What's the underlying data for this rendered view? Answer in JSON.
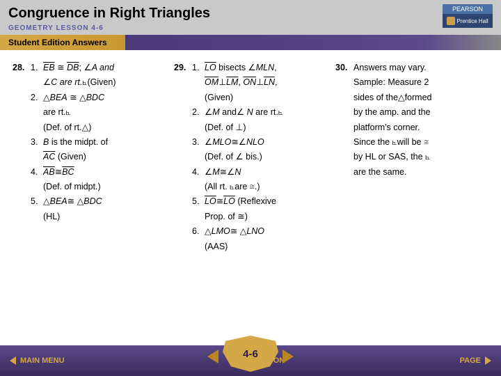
{
  "header": {
    "title": "Congruence in Right Triangles",
    "subtitle": "GEOMETRY  LESSON 4-6"
  },
  "pearson": {
    "top": "PEARSON",
    "bot": "Prentice Hall"
  },
  "banner": "Student Edition Answers",
  "q28": {
    "num": "28.",
    "s1n": "1.",
    "s1a": "EB",
    "s1b": "DB",
    "s1c": "; ",
    "s1d": "A and",
    "s1e": "C are rt.",
    "s1f": "(Given)",
    "s2n": "2.",
    "s2a": "BEA",
    "s2b": "BDC",
    "s2c": "are rt.",
    "s2d": "(Def. of rt.",
    "s2e": ")",
    "s3n": "3.",
    "s3a": "B",
    "s3b": " is the midpt. of",
    "s3c": "AC",
    "s3d": " (Given)",
    "s4n": "4.",
    "s4a": "AB",
    "s4b": "BC",
    "s4c": "(Def. of midpt.)",
    "s5n": "5.",
    "s5a": "BEA",
    "s5b": "BDC",
    "s5c": "(HL)"
  },
  "q29": {
    "num": "29.",
    "s1n": "1.",
    "s1a": "LO",
    "s1b": " bisects ",
    "s1c": "MLN",
    "s1d": ",",
    "s1e": "OM",
    "s1f": "LM",
    "s1g": ", ",
    "s1h": "ON",
    "s1i": "LN",
    "s1j": ",",
    "s1k": "(Given)",
    "s2n": "2.",
    "s2a": "M",
    "s2b": " and",
    "s2c": " N",
    "s2d": " are rt.",
    "s2e": "(Def. of ",
    "s2f": ")",
    "s3n": "3.",
    "s3a": "MLO",
    "s3b": "NLO",
    "s3c": "(Def. of ",
    "s3d": " bis.)",
    "s4n": "4.",
    "s4a": "M",
    "s4b": "N",
    "s4c": "(All rt. ",
    "s4d": "are ",
    "s4e": ".)",
    "s5n": "5.",
    "s5a": "LO",
    "s5b": "LO",
    "s5c": " (Reflexive",
    "s5d": "Prop. of ",
    "s5e": ")",
    "s6n": "6.",
    "s6a": "LMO",
    "s6b": "LNO",
    "s6c": "(AAS)"
  },
  "q30": {
    "num": "30.",
    "l1": "Answers may vary.",
    "l2": "Sample: Measure 2",
    "l3a": "sides of the",
    "l3b": "formed",
    "l4": "by the amp. and the",
    "l5": "platform's corner.",
    "l6a": "Since the ",
    "l6b": "will be ",
    "l7a": "by HL or SAS, the ",
    "l8": "are the same."
  },
  "footer": {
    "b1": "MAIN MENU",
    "b2": "LESSON",
    "b3": "PAGE",
    "center": "4-6"
  }
}
